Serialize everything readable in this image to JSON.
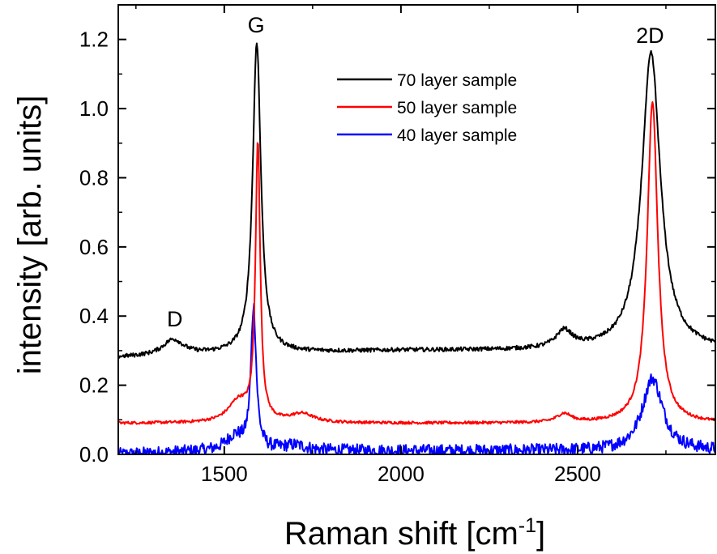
{
  "chart_data": {
    "type": "line",
    "title": "",
    "xlabel": "Raman shift [cm",
    "xlabel_sup": "-1",
    "xlabel_end": "]",
    "ylabel": "intensity [arb. units]",
    "xlim": [
      1200,
      2890
    ],
    "ylim": [
      0.0,
      1.3
    ],
    "x_ticks": [
      1500,
      2000,
      2500
    ],
    "x_tick_labels": [
      "1500",
      "2000",
      "2500"
    ],
    "y_ticks": [
      0.0,
      0.2,
      0.4,
      0.6,
      0.8,
      1.0,
      1.2
    ],
    "y_tick_labels": [
      "0.0",
      "0.2",
      "0.4",
      "0.6",
      "0.8",
      "1.0",
      "1.2"
    ],
    "legend_position": "top-center",
    "annotations": [
      {
        "text": "D",
        "x": 1360,
        "y": 0.37
      },
      {
        "text": "G",
        "x": 1590,
        "y": 1.22
      },
      {
        "text": "2D",
        "x": 2705,
        "y": 1.19
      }
    ],
    "series": [
      {
        "name": "70 layer sample",
        "color": "#000000",
        "baseline": [
          [
            1200,
            0.28
          ],
          [
            1500,
            0.29
          ],
          [
            2000,
            0.3
          ],
          [
            2400,
            0.3
          ],
          [
            2600,
            0.3
          ],
          [
            2890,
            0.3
          ]
        ],
        "peaks": [
          {
            "center": 1355,
            "height": 0.045,
            "width": 35
          },
          {
            "center": 1592,
            "height": 0.9,
            "width": 14
          },
          {
            "center": 2462,
            "height": 0.05,
            "width": 28
          },
          {
            "center": 2708,
            "height": 0.86,
            "width": 32
          }
        ],
        "noise": 0.006
      },
      {
        "name": "50 layer sample",
        "color": "#ff0000",
        "baseline": [
          [
            1200,
            0.09
          ],
          [
            1500,
            0.09
          ],
          [
            2000,
            0.09
          ],
          [
            2400,
            0.09
          ],
          [
            2600,
            0.09
          ],
          [
            2890,
            0.09
          ]
        ],
        "peaks": [
          {
            "center": 1540,
            "height": 0.06,
            "width": 35
          },
          {
            "center": 1595,
            "height": 0.8,
            "width": 8
          },
          {
            "center": 1720,
            "height": 0.025,
            "width": 40
          },
          {
            "center": 2462,
            "height": 0.025,
            "width": 25
          },
          {
            "center": 2712,
            "height": 0.93,
            "width": 18
          }
        ],
        "noise": 0.004
      },
      {
        "name": "40 layer sample",
        "color": "#0000ff",
        "baseline": [
          [
            1200,
            0.0
          ],
          [
            1500,
            0.01
          ],
          [
            2000,
            0.01
          ],
          [
            2400,
            0.01
          ],
          [
            2600,
            0.01
          ],
          [
            2890,
            0.01
          ]
        ],
        "peaks": [
          {
            "center": 1530,
            "height": 0.04,
            "width": 30
          },
          {
            "center": 1583,
            "height": 0.41,
            "width": 9
          },
          {
            "center": 1700,
            "height": 0.015,
            "width": 40
          },
          {
            "center": 2712,
            "height": 0.21,
            "width": 35
          }
        ],
        "noise": 0.018
      }
    ]
  }
}
